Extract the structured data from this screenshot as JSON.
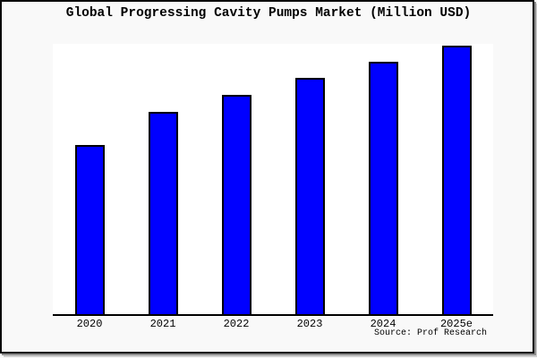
{
  "chart_data": {
    "type": "bar",
    "title": "Global Progressing Cavity Pumps Market (Million USD)",
    "categories": [
      "2020",
      "2021",
      "2022",
      "2023",
      "2024",
      "2025e"
    ],
    "values": [
      63.0,
      75.3,
      81.7,
      88.0,
      94.0,
      100.0
    ],
    "values_note": "relative bar heights as percent of tallest bar; chart displays no numeric y-axis or gridlines",
    "xlabel": "",
    "ylabel": "",
    "grid": false,
    "legend": "none",
    "y_axis_ticks": "none shown",
    "source_note": "Source: Prof Research",
    "colors": {
      "bar_fill": "#0000ff",
      "bar_outline": "#000000",
      "axis_line": "#000000",
      "plot_background": "#ffffff",
      "page_background": "#f9f9f9",
      "text": "#000000"
    }
  }
}
